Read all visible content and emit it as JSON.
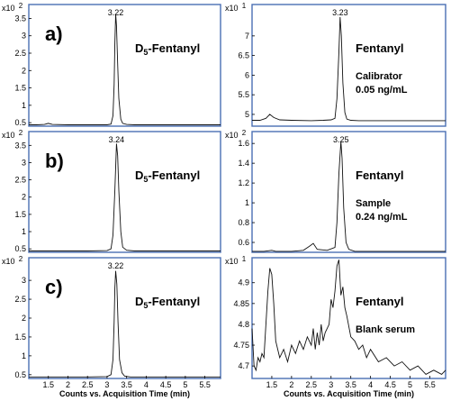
{
  "chart_data": [
    {
      "type": "line",
      "panel_label": "a)",
      "compound": "D",
      "compound_sub": "5",
      "compound_rest": "-Fentanyl",
      "scale_label": "x10",
      "scale_exp": "2",
      "peak_label": "3.22",
      "ylim": [
        0.4,
        3.9
      ],
      "xlim": [
        1.0,
        5.9
      ],
      "yticks": [
        "0.5",
        "1",
        "1.5",
        "2",
        "2.5",
        "3",
        "3.5"
      ],
      "xticks": [],
      "series": [
        {
          "x": [
            1.0,
            1.2,
            1.4,
            1.5,
            1.6,
            2.0,
            2.5,
            3.0,
            3.1,
            3.15,
            3.18,
            3.2,
            3.22,
            3.24,
            3.27,
            3.3,
            3.35,
            3.4,
            3.5,
            3.7,
            4.0,
            4.5,
            5.0,
            5.5,
            5.9
          ],
          "y": [
            0.44,
            0.44,
            0.45,
            0.48,
            0.45,
            0.44,
            0.44,
            0.44,
            0.46,
            0.7,
            1.6,
            2.8,
            3.62,
            3.3,
            2.2,
            1.2,
            0.6,
            0.48,
            0.45,
            0.44,
            0.44,
            0.44,
            0.44,
            0.44,
            0.44
          ]
        }
      ]
    },
    {
      "type": "line",
      "compound": "Fentanyl",
      "note1": "Calibrator",
      "note2": "0.05 ng/mL",
      "scale_label": "x10",
      "scale_exp": "1",
      "peak_label": "3.23",
      "ylim": [
        4.7,
        7.8
      ],
      "xlim": [
        1.0,
        5.9
      ],
      "yticks": [
        "5",
        "5.5",
        "6",
        "6.5",
        "7"
      ],
      "xticks": [],
      "series": [
        {
          "x": [
            1.0,
            1.2,
            1.35,
            1.45,
            1.55,
            1.7,
            2.0,
            2.5,
            2.8,
            3.0,
            3.1,
            3.15,
            3.2,
            3.23,
            3.26,
            3.3,
            3.35,
            3.4,
            3.5,
            3.7,
            4.0,
            4.5,
            5.0,
            5.5,
            5.9
          ],
          "y": [
            4.85,
            4.85,
            4.9,
            5.0,
            4.92,
            4.86,
            4.85,
            4.84,
            4.85,
            4.86,
            4.9,
            5.4,
            6.6,
            7.48,
            7.0,
            5.8,
            5.05,
            4.88,
            4.85,
            4.84,
            4.84,
            4.84,
            4.84,
            4.84,
            4.84
          ]
        }
      ]
    },
    {
      "type": "line",
      "panel_label": "b)",
      "compound": "D",
      "compound_sub": "5",
      "compound_rest": "-Fentanyl",
      "scale_label": "x10",
      "scale_exp": "2",
      "peak_label": "3.24",
      "ylim": [
        0.4,
        3.9
      ],
      "xlim": [
        1.0,
        5.9
      ],
      "yticks": [
        "0.5",
        "1",
        "1.5",
        "2",
        "2.5",
        "3",
        "3.5"
      ],
      "xticks": [],
      "series": [
        {
          "x": [
            1.0,
            1.5,
            2.0,
            2.5,
            3.0,
            3.1,
            3.15,
            3.2,
            3.24,
            3.27,
            3.3,
            3.35,
            3.4,
            3.5,
            3.7,
            4.0,
            4.5,
            5.0,
            5.5,
            5.9
          ],
          "y": [
            0.44,
            0.44,
            0.44,
            0.44,
            0.45,
            0.5,
            0.9,
            2.2,
            3.55,
            3.2,
            2.2,
            1.0,
            0.55,
            0.46,
            0.44,
            0.44,
            0.44,
            0.44,
            0.44,
            0.44
          ]
        }
      ]
    },
    {
      "type": "line",
      "compound": "Fentanyl",
      "note1": "Sample",
      "note2": "0.24 ng/mL",
      "scale_label": "x10",
      "scale_exp": "2",
      "peak_label": "3.25",
      "ylim": [
        0.5,
        1.72
      ],
      "xlim": [
        1.0,
        5.9
      ],
      "yticks": [
        "0.6",
        "0.8",
        "1",
        "1.2",
        "1.4",
        "1.6"
      ],
      "xticks": [],
      "series": [
        {
          "x": [
            1.0,
            1.3,
            1.5,
            1.6,
            2.0,
            2.3,
            2.45,
            2.55,
            2.65,
            2.9,
            3.1,
            3.15,
            3.2,
            3.25,
            3.28,
            3.32,
            3.38,
            3.45,
            3.6,
            4.0,
            4.5,
            5.0,
            5.5,
            5.9
          ],
          "y": [
            0.51,
            0.51,
            0.52,
            0.51,
            0.51,
            0.52,
            0.56,
            0.59,
            0.53,
            0.52,
            0.55,
            0.8,
            1.3,
            1.62,
            1.45,
            0.95,
            0.6,
            0.53,
            0.51,
            0.51,
            0.51,
            0.51,
            0.51,
            0.51
          ]
        }
      ]
    },
    {
      "type": "line",
      "panel_label": "c)",
      "compound": "D",
      "compound_sub": "5",
      "compound_rest": "-Fentanyl",
      "scale_label": "x10",
      "scale_exp": "2",
      "peak_label": "3.22",
      "ylim": [
        0.4,
        3.6
      ],
      "xlim": [
        1.0,
        5.9
      ],
      "xlabel": "Counts vs. Acquisition Time (min)",
      "yticks": [
        "0.5",
        "1",
        "1.5",
        "2",
        "2.5",
        "3"
      ],
      "xticks": [
        "1.5",
        "2",
        "2.5",
        "3",
        "3.5",
        "4",
        "4.5",
        "5",
        "5.5"
      ],
      "series": [
        {
          "x": [
            1.0,
            1.5,
            2.0,
            2.5,
            3.0,
            3.1,
            3.15,
            3.18,
            3.2,
            3.22,
            3.25,
            3.28,
            3.32,
            3.38,
            3.45,
            3.6,
            4.0,
            4.5,
            5.0,
            5.5,
            5.9
          ],
          "y": [
            0.44,
            0.44,
            0.44,
            0.44,
            0.45,
            0.5,
            0.9,
            1.9,
            2.8,
            3.25,
            2.9,
            1.9,
            0.9,
            0.55,
            0.46,
            0.44,
            0.44,
            0.44,
            0.44,
            0.44,
            0.44
          ]
        }
      ]
    },
    {
      "type": "line",
      "compound": "Fentanyl",
      "note1": "Blank serum",
      "scale_label": "x10",
      "scale_exp": "1",
      "ylim": [
        4.67,
        4.96
      ],
      "xlim": [
        1.0,
        5.9
      ],
      "xlabel": "Counts vs. Acquisition Time (min)",
      "yticks": [
        "4.7",
        "4.75",
        "4.8",
        "4.85",
        "4.9"
      ],
      "xticks": [
        "1.5",
        "2",
        "2.5",
        "3",
        "3.5",
        "4",
        "4.5",
        "5",
        "5.5"
      ],
      "series": [
        {
          "x": [
            1.0,
            1.05,
            1.1,
            1.15,
            1.2,
            1.25,
            1.3,
            1.35,
            1.4,
            1.45,
            1.5,
            1.55,
            1.6,
            1.7,
            1.8,
            1.9,
            2.0,
            2.1,
            2.2,
            2.3,
            2.4,
            2.5,
            2.55,
            2.6,
            2.65,
            2.7,
            2.75,
            2.8,
            2.85,
            2.9,
            2.95,
            3.0,
            3.05,
            3.1,
            3.15,
            3.2,
            3.25,
            3.3,
            3.35,
            3.4,
            3.5,
            3.6,
            3.7,
            3.8,
            3.9,
            4.0,
            4.2,
            4.4,
            4.6,
            4.8,
            5.0,
            5.2,
            5.4,
            5.6,
            5.8,
            5.9
          ],
          "y": [
            4.79,
            4.7,
            4.69,
            4.72,
            4.71,
            4.73,
            4.72,
            4.8,
            4.88,
            4.935,
            4.92,
            4.85,
            4.76,
            4.72,
            4.74,
            4.71,
            4.75,
            4.73,
            4.76,
            4.74,
            4.77,
            4.75,
            4.79,
            4.74,
            4.78,
            4.75,
            4.8,
            4.76,
            4.78,
            4.79,
            4.8,
            4.86,
            4.84,
            4.88,
            4.94,
            4.955,
            4.87,
            4.89,
            4.84,
            4.82,
            4.77,
            4.76,
            4.74,
            4.75,
            4.72,
            4.74,
            4.71,
            4.72,
            4.7,
            4.71,
            4.69,
            4.7,
            4.68,
            4.69,
            4.68,
            4.69
          ]
        }
      ]
    }
  ]
}
